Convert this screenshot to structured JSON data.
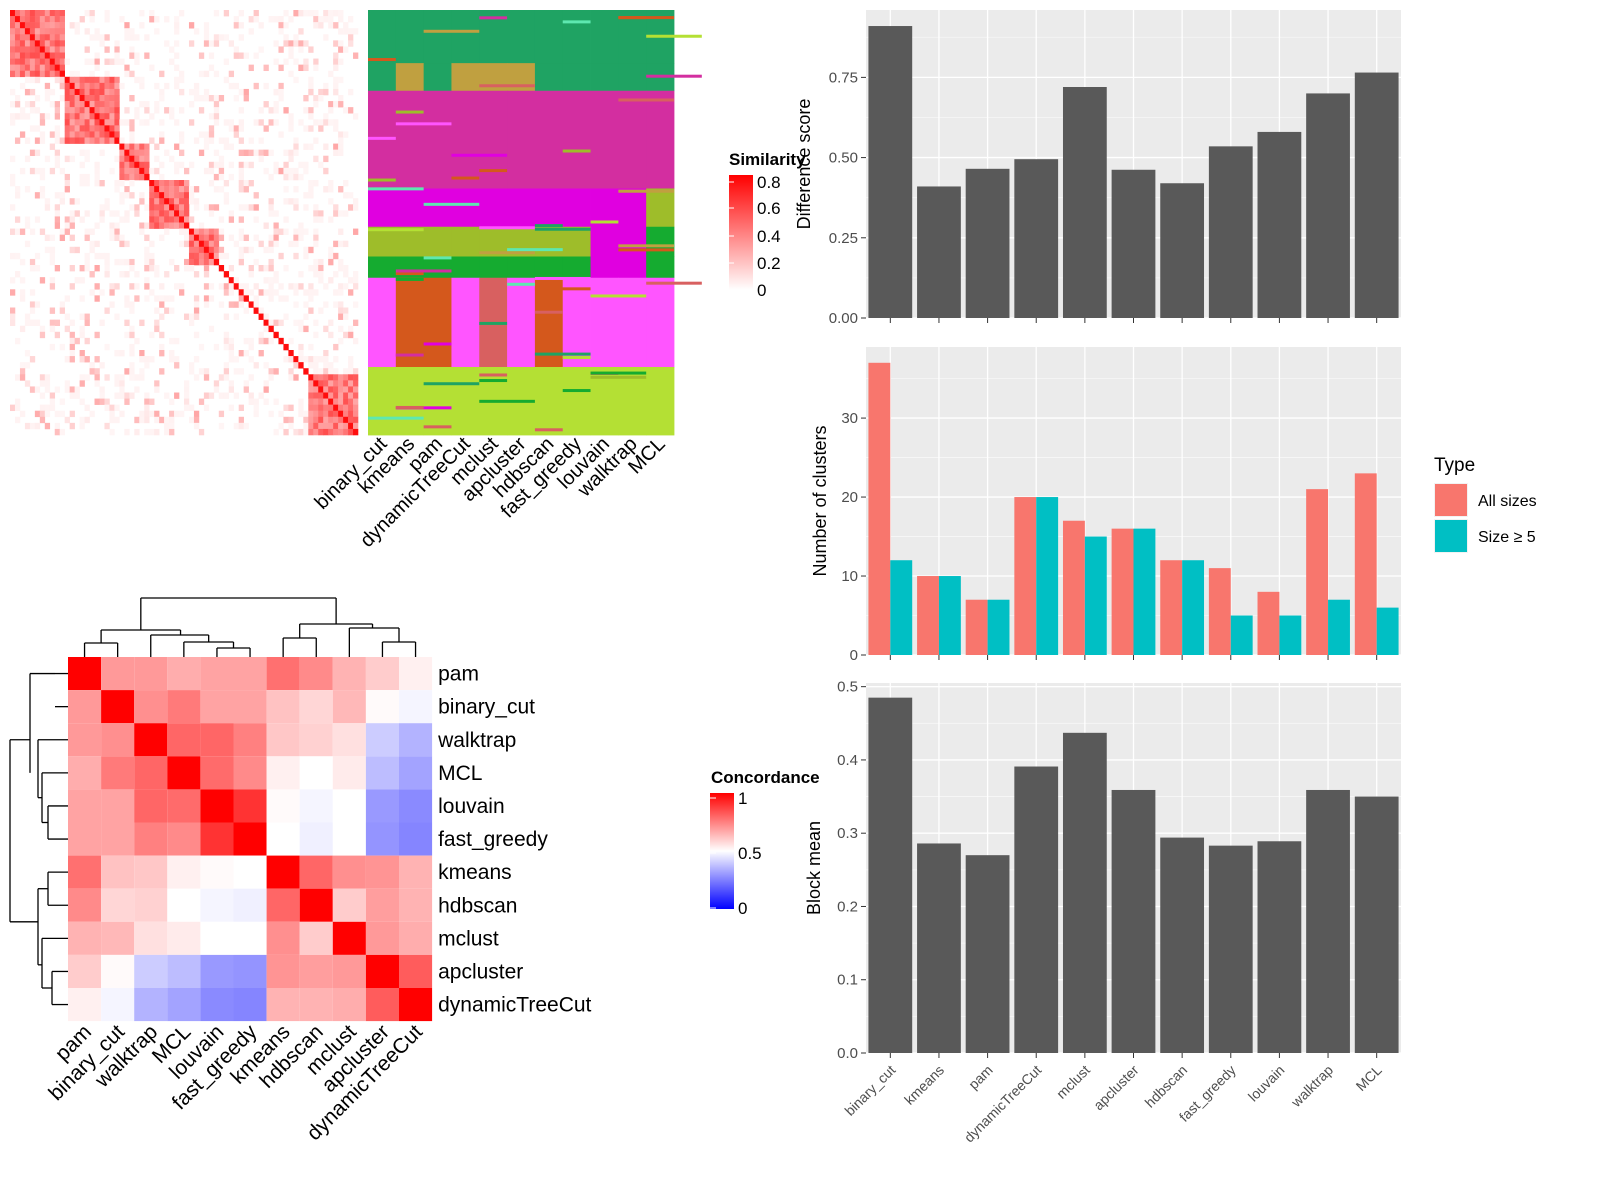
{
  "chart_data": [
    {
      "id": "similarity_heatmap",
      "type": "heatmap",
      "description": "term similarity matrix with cluster assignment columns",
      "column_labels": [
        "binary_cut",
        "kmeans",
        "pam",
        "dynamicTreeCut",
        "mclust",
        "apcluster",
        "hdbscan",
        "fast_greedy",
        "louvain",
        "walktrap",
        "MCL"
      ],
      "legend": {
        "title": "Similarity",
        "ticks": [
          "0.8",
          "0.6",
          "0.4",
          "0.2",
          "0"
        ],
        "colors": [
          "#ffffff",
          "#ff0000"
        ]
      }
    },
    {
      "id": "concordance_heatmap",
      "type": "heatmap",
      "row_labels": [
        "pam",
        "binary_cut",
        "walktrap",
        "MCL",
        "louvain",
        "fast_greedy",
        "kmeans",
        "hdbscan",
        "mclust",
        "apcluster",
        "dynamicTreeCut"
      ],
      "column_labels": [
        "pam",
        "binary_cut",
        "walktrap",
        "MCL",
        "louvain",
        "fast_greedy",
        "kmeans",
        "hdbscan",
        "mclust",
        "apcluster",
        "dynamicTreeCut"
      ],
      "values": [
        [
          1.0,
          0.7,
          0.7,
          0.66,
          0.68,
          0.68,
          0.78,
          0.73,
          0.65,
          0.6,
          0.53
        ],
        [
          0.7,
          1.0,
          0.72,
          0.76,
          0.68,
          0.68,
          0.62,
          0.58,
          0.64,
          0.51,
          0.48
        ],
        [
          0.7,
          0.72,
          1.0,
          0.8,
          0.8,
          0.75,
          0.61,
          0.59,
          0.56,
          0.4,
          0.35
        ],
        [
          0.66,
          0.76,
          0.8,
          1.0,
          0.79,
          0.73,
          0.53,
          0.5,
          0.54,
          0.37,
          0.32
        ],
        [
          0.68,
          0.68,
          0.8,
          0.79,
          1.0,
          0.9,
          0.51,
          0.48,
          0.5,
          0.3,
          0.27
        ],
        [
          0.68,
          0.68,
          0.75,
          0.73,
          0.9,
          1.0,
          0.5,
          0.47,
          0.5,
          0.29,
          0.26
        ],
        [
          0.78,
          0.62,
          0.61,
          0.53,
          0.51,
          0.5,
          1.0,
          0.8,
          0.72,
          0.71,
          0.65
        ],
        [
          0.73,
          0.58,
          0.59,
          0.5,
          0.48,
          0.47,
          0.8,
          1.0,
          0.6,
          0.69,
          0.65
        ],
        [
          0.65,
          0.64,
          0.56,
          0.54,
          0.5,
          0.5,
          0.72,
          0.6,
          1.0,
          0.7,
          0.66
        ],
        [
          0.6,
          0.51,
          0.4,
          0.37,
          0.3,
          0.29,
          0.71,
          0.69,
          0.7,
          1.0,
          0.82
        ],
        [
          0.53,
          0.48,
          0.35,
          0.32,
          0.27,
          0.26,
          0.65,
          0.65,
          0.66,
          0.82,
          1.0
        ]
      ],
      "legend": {
        "title": "Concordance",
        "ticks": [
          "1",
          "0.5",
          "0"
        ],
        "colors": [
          "#0000ff",
          "#ffffff",
          "#ff0000"
        ]
      }
    },
    {
      "id": "difference_score",
      "type": "bar",
      "categories": [
        "binary_cut",
        "kmeans",
        "pam",
        "dynamicTreeCut",
        "mclust",
        "apcluster",
        "hdbscan",
        "fast_greedy",
        "louvain",
        "walktrap",
        "MCL"
      ],
      "values": [
        0.91,
        0.41,
        0.465,
        0.495,
        0.72,
        0.462,
        0.42,
        0.535,
        0.58,
        0.7,
        0.765
      ],
      "ylabel": "Difference score",
      "ylim": [
        0,
        0.96
      ],
      "yticks": [
        "0.00",
        "0.25",
        "0.50",
        "0.75"
      ],
      "color": "#595959"
    },
    {
      "id": "number_of_clusters",
      "type": "bar",
      "categories": [
        "binary_cut",
        "kmeans",
        "pam",
        "dynamicTreeCut",
        "mclust",
        "apcluster",
        "hdbscan",
        "fast_greedy",
        "louvain",
        "walktrap",
        "MCL"
      ],
      "series": [
        {
          "name": "All sizes",
          "values": [
            37,
            10,
            7,
            20,
            17,
            16,
            12,
            11,
            8,
            21,
            23
          ],
          "color": "#F8766D"
        },
        {
          "name": "Size ≥ 5",
          "values": [
            12,
            10,
            7,
            20,
            15,
            16,
            12,
            5,
            5,
            7,
            6
          ],
          "color": "#00BFC4"
        }
      ],
      "ylabel": "Number of clusters",
      "ylim": [
        0,
        39
      ],
      "yticks": [
        "0",
        "10",
        "20",
        "30"
      ],
      "legend": {
        "title": "Type",
        "position": "right"
      }
    },
    {
      "id": "block_mean",
      "type": "bar",
      "categories": [
        "binary_cut",
        "kmeans",
        "pam",
        "dynamicTreeCut",
        "mclust",
        "apcluster",
        "hdbscan",
        "fast_greedy",
        "louvain",
        "walktrap",
        "MCL"
      ],
      "values": [
        0.485,
        0.286,
        0.27,
        0.391,
        0.437,
        0.359,
        0.294,
        0.283,
        0.289,
        0.359,
        0.35
      ],
      "ylabel": "Block mean",
      "ylim": [
        0,
        0.505
      ],
      "yticks": [
        "0.0",
        "0.1",
        "0.2",
        "0.3",
        "0.4",
        "0.5"
      ],
      "color": "#595959"
    }
  ]
}
